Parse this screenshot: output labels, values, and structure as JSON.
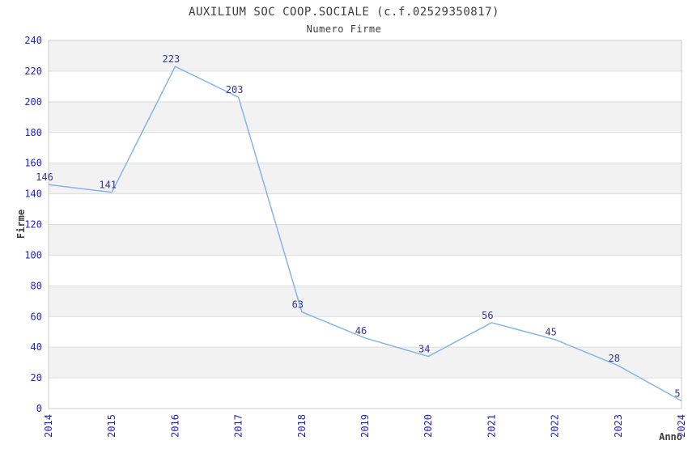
{
  "header": {
    "title": "AUXILIUM SOC COOP.SOCIALE (c.f.02529350817)",
    "subtitle": "Numero Firme"
  },
  "chart_data": {
    "type": "line",
    "title": "AUXILIUM SOC COOP.SOCIALE (c.f.02529350817)",
    "subtitle": "Numero Firme",
    "xlabel": "Anno",
    "ylabel": "Firme",
    "categories": [
      2014,
      2015,
      2016,
      2017,
      2018,
      2019,
      2020,
      2021,
      2022,
      2023,
      2024
    ],
    "series": [
      {
        "name": "Numero Firme",
        "values": [
          146,
          141,
          223,
          203,
          63,
          46,
          34,
          56,
          45,
          28,
          5
        ]
      }
    ],
    "ylim": [
      0,
      240
    ],
    "ytick_step": 20,
    "y_ticks": [
      0,
      20,
      40,
      60,
      80,
      100,
      120,
      140,
      160,
      180,
      200,
      220,
      240
    ],
    "grid": "horizontal",
    "alternating_bands": true,
    "legend_position": "none",
    "point_labels_visible": true,
    "colors": {
      "line": "#85b5e8",
      "tick_label": "#2222cc",
      "point_label": "#333399",
      "band": "#f2f2f2",
      "gridline": "#dedede",
      "frame": "#cccccc",
      "title": "#3d3d3d",
      "background": "#ffffff"
    }
  }
}
